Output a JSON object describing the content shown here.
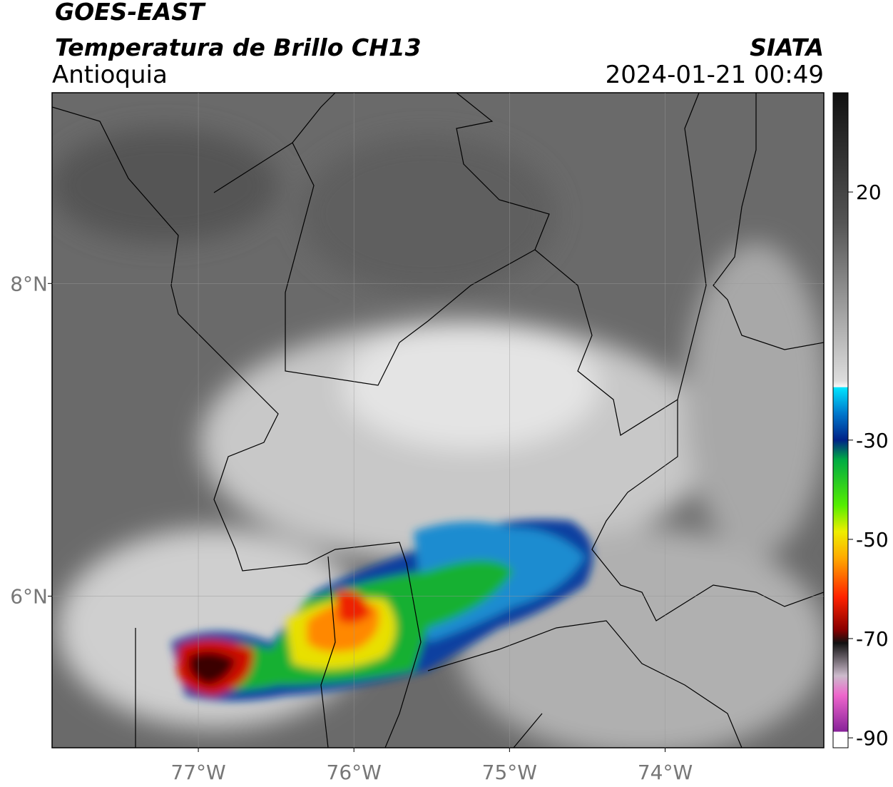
{
  "header": {
    "title": "GOES-EAST",
    "subtitle": "Temperatura de Brillo CH13",
    "region": "Antioquia",
    "source": "SIATA",
    "datetime": "2024-01-21 00:49"
  },
  "map": {
    "lonlim": [
      -77.94,
      -72.98
    ],
    "latlim": [
      5.03,
      9.22
    ],
    "xticks": [
      {
        "value": -77,
        "label": "77°W"
      },
      {
        "value": -76,
        "label": "76°W"
      },
      {
        "value": -75,
        "label": "75°W"
      },
      {
        "value": -74,
        "label": "74°W"
      }
    ],
    "yticks": [
      {
        "value": 8,
        "label": "8°N"
      },
      {
        "value": 6,
        "label": "6°N"
      }
    ]
  },
  "colorbar": {
    "lim": [
      -92,
      40
    ],
    "ticks": [
      20,
      -30,
      -50,
      -70,
      -90
    ]
  }
}
